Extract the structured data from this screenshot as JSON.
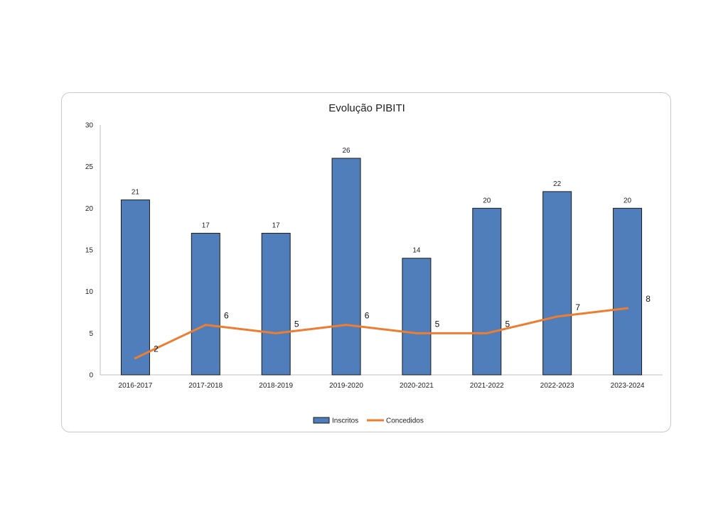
{
  "chart_data": {
    "type": "bar",
    "title": "Evolução PIBITI",
    "categories": [
      "2016-2017",
      "2017-2018",
      "2018-2019",
      "2019-2020",
      "2020-2021",
      "2021-2022",
      "2022-2023",
      "2023-2024"
    ],
    "series": [
      {
        "name": "Inscritos",
        "kind": "bar",
        "values": [
          21,
          17,
          17,
          26,
          14,
          20,
          22,
          20
        ],
        "color": "#4F7EBB"
      },
      {
        "name": "Concedidos",
        "kind": "line",
        "values": [
          2,
          6,
          5,
          6,
          5,
          5,
          7,
          8
        ],
        "color": "#ED7D31"
      }
    ],
    "ylim": [
      0,
      30
    ],
    "yticks": [
      "0",
      "5",
      "10",
      "15",
      "20",
      "25",
      "30"
    ],
    "grid": false,
    "legend": "bottom"
  }
}
